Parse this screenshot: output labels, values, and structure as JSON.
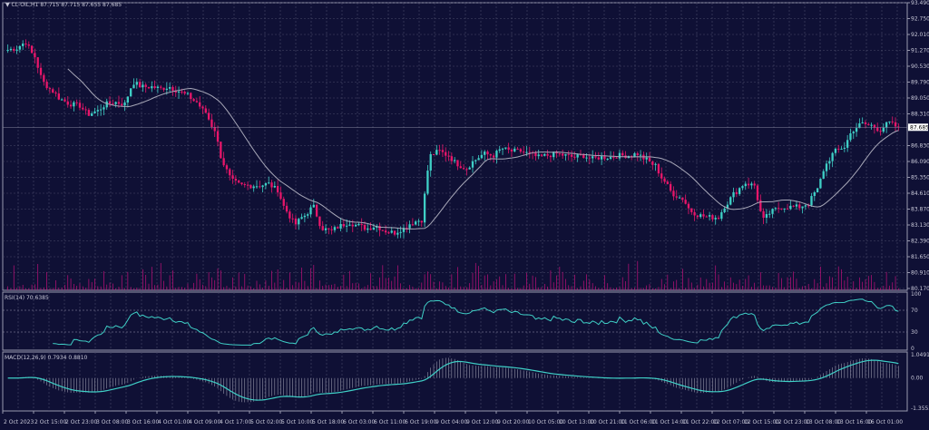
{
  "header": {
    "symbol": "CL-OIL,H1",
    "ohlc": "87.715 87.715 87.655 87.685"
  },
  "rsi_label": "RSI(14) 70.6385",
  "macd_label": "MACD(12,26,9) 0.7934 0.8810",
  "colors": {
    "background": "#0f1035",
    "bull": "#3fcfc6",
    "bear": "#e8166a",
    "ma": "#a8a8b8",
    "indicator": "#3fcfc6",
    "grid": "#4a4a6a"
  },
  "chart_data": [
    {
      "type": "candlestick",
      "title": "CL-OIL,H1",
      "ylim": [
        80.17,
        93.49
      ],
      "y_ticks": [
        "93.490",
        "92.750",
        "92.010",
        "91.270",
        "90.530",
        "89.790",
        "89.050",
        "88.310",
        "86.830",
        "86.090",
        "85.350",
        "84.610",
        "83.870",
        "83.130",
        "82.390",
        "81.650",
        "80.910",
        "80.170"
      ],
      "current_price": "87.685",
      "x_ticks": [
        "2 Oct 2023",
        "2 Oct 15:00",
        "2 Oct 23:00",
        "3 Oct 08:00",
        "3 Oct 16:00",
        "4 Oct 01:00",
        "4 Oct 09:00",
        "4 Oct 17:00",
        "5 Oct 02:00",
        "5 Oct 10:00",
        "5 Oct 18:00",
        "6 Oct 03:00",
        "6 Oct 11:00",
        "6 Oct 19:00",
        "9 Oct 04:00",
        "9 Oct 12:00",
        "9 Oct 20:00",
        "10 Oct 05:00",
        "10 Oct 13:00",
        "10 Oct 21:00",
        "11 Oct 06:00",
        "11 Oct 14:00",
        "11 Oct 22:00",
        "12 Oct 07:00",
        "12 Oct 15:00",
        "12 Oct 23:00",
        "13 Oct 08:00",
        "13 Oct 16:00",
        "16 Oct 01:00"
      ],
      "closes": [
        91.29,
        91.37,
        91.65,
        90.97,
        89.77,
        89.37,
        88.97,
        88.77,
        88.69,
        88.29,
        88.45,
        88.77,
        88.85,
        88.77,
        89.77,
        89.57,
        89.57,
        89.49,
        89.57,
        89.37,
        89.17,
        88.85,
        88.37,
        87.57,
        85.97,
        85.17,
        84.97,
        84.97,
        84.97,
        85.05,
        84.77,
        83.77,
        83.17,
        83.57,
        83.97,
        82.97,
        82.85,
        83.09,
        83.25,
        83.09,
        82.97,
        83.09,
        82.85,
        82.77,
        82.97,
        83.25,
        83.37,
        86.37,
        86.57,
        86.37,
        85.97,
        85.77,
        86.17,
        86.45,
        86.37,
        86.69,
        86.57,
        86.57,
        86.45,
        86.29,
        86.37,
        86.45,
        86.37,
        86.29,
        86.37,
        86.21,
        86.29,
        86.29,
        86.37,
        86.37,
        86.45,
        86.17,
        85.89,
        85.17,
        84.57,
        84.37,
        83.77,
        83.57,
        83.49,
        83.49,
        84.17,
        84.69,
        85.09,
        84.97,
        83.37,
        83.77,
        83.97,
        83.97,
        83.97,
        84.13,
        84.77,
        85.97,
        86.57,
        86.77,
        87.57,
        87.85,
        87.77,
        87.57,
        87.89,
        87.685
      ],
      "ma_period": 20,
      "volume": true
    },
    {
      "type": "line",
      "title": "RSI(14) 70.6385",
      "ylim": [
        0,
        100
      ],
      "y_ticks": [
        "100",
        "70",
        "30",
        "0"
      ]
    },
    {
      "type": "bar+line",
      "title": "MACD(12,26,9) 0.7934 0.8810",
      "ylim": [
        -1.3553,
        1.0491
      ],
      "y_ticks": [
        "1.0491",
        "0.00",
        "-1.3553"
      ]
    }
  ]
}
